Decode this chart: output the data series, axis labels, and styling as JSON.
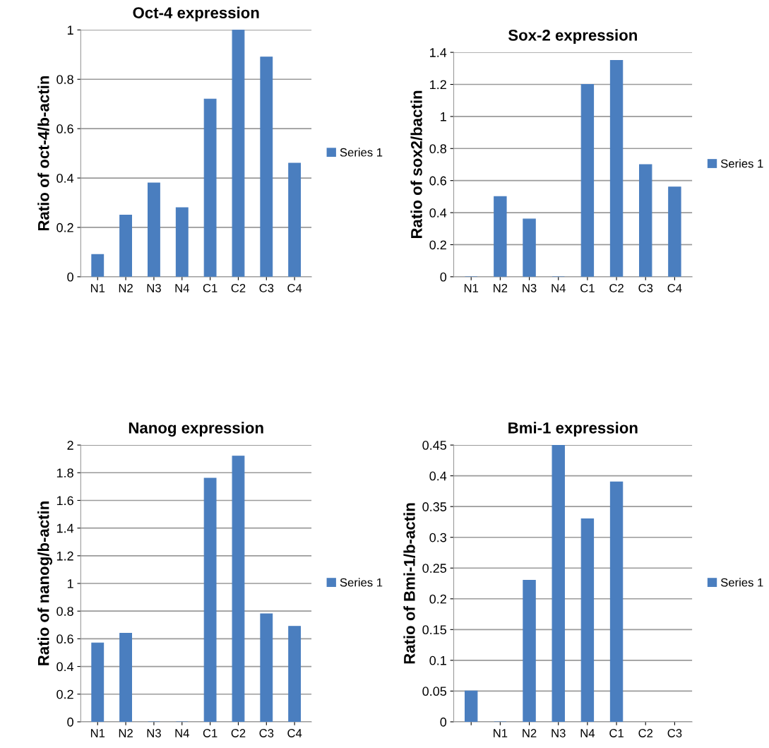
{
  "chart_data": [
    {
      "type": "bar",
      "title": "Oct-4 expression",
      "ylabel": "Ratio of oct-4/b-actin",
      "categories": [
        "N1",
        "N2",
        "N3",
        "N4",
        "C1",
        "C2",
        "C3",
        "C4"
      ],
      "series": [
        {
          "name": "Series 1",
          "color": "#4a7ebf",
          "values": [
            0.09,
            0.25,
            0.38,
            0.28,
            0.72,
            1.0,
            0.89,
            0.46
          ]
        }
      ],
      "ylim": [
        0,
        1
      ],
      "yticks": [
        0,
        0.2,
        0.4,
        0.6,
        0.8,
        1
      ],
      "grid": "y",
      "legend": "right"
    },
    {
      "type": "bar",
      "title": "Sox-2 expression",
      "ylabel": "Ratio of sox2/bactin",
      "categories": [
        "N1",
        "N2",
        "N3",
        "N4",
        "C1",
        "C2",
        "C3",
        "C4"
      ],
      "series": [
        {
          "name": "Series 1",
          "color": "#4a7ebf",
          "values": [
            0,
            0.5,
            0.36,
            0,
            1.2,
            1.35,
            0.7,
            0.56
          ]
        }
      ],
      "ylim": [
        0,
        1.4
      ],
      "yticks": [
        0,
        0.2,
        0.4,
        0.6,
        0.8,
        1,
        1.2,
        1.4
      ],
      "grid": "y",
      "legend": "right"
    },
    {
      "type": "bar",
      "title": "Nanog expression",
      "ylabel": "Ratio of nanog/b-actin",
      "categories": [
        "N1",
        "N2",
        "N3",
        "N4",
        "C1",
        "C2",
        "C3",
        "C4"
      ],
      "series": [
        {
          "name": "Series 1",
          "color": "#4a7ebf",
          "values": [
            0.57,
            0.64,
            0,
            0,
            1.76,
            1.92,
            0.78,
            0.69
          ]
        }
      ],
      "ylim": [
        0,
        2
      ],
      "yticks": [
        0,
        0.2,
        0.4,
        0.6,
        0.8,
        1,
        1.2,
        1.4,
        1.6,
        1.8,
        2
      ],
      "grid": "y",
      "legend": "right"
    },
    {
      "type": "bar",
      "title": "Bmi-1 expression",
      "ylabel": "Ratio of Bmi-1/b-actin",
      "categories": [
        null,
        "N1",
        "N2",
        "N3",
        "N4",
        "C1",
        "C2",
        "C3"
      ],
      "series": [
        {
          "name": "Series 1",
          "color": "#4a7ebf",
          "values": [
            0.05,
            0,
            0.23,
            0.45,
            0.33,
            0.39,
            null,
            null
          ]
        }
      ],
      "ylim": [
        0,
        0.45
      ],
      "yticks": [
        0,
        0.05,
        0.1,
        0.15,
        0.2,
        0.25,
        0.3,
        0.35,
        0.4,
        0.45
      ],
      "grid": "y",
      "legend": "right"
    }
  ]
}
